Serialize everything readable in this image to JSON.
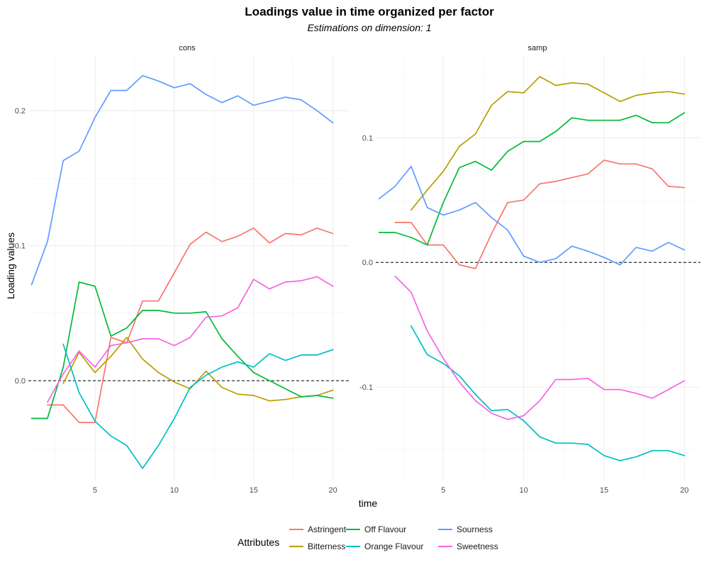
{
  "chart_data": {
    "type": "line",
    "title": "Loadings value in time organized per factor",
    "subtitle": "Estimations on dimension: 1",
    "xlabel": "time",
    "ylabel": "Loading values",
    "legend": {
      "title": "Attributes",
      "position": "bottom",
      "items": [
        {
          "name": "Astringent",
          "color": "#F8766D"
        },
        {
          "name": "Bitterness",
          "color": "#B79F00"
        },
        {
          "name": "Off Flavour",
          "color": "#00BA38"
        },
        {
          "name": "Orange Flavour",
          "color": "#00BFC4"
        },
        {
          "name": "Sourness",
          "color": "#619CFF"
        },
        {
          "name": "Sweetness",
          "color": "#F564E3"
        }
      ]
    },
    "facets": [
      {
        "name": "cons",
        "xlim": [
          0.8,
          21.0
        ],
        "ylim": [
          -0.074,
          0.24
        ],
        "xticks": [
          5,
          10,
          15,
          20
        ],
        "yticks": [
          0.0,
          0.1,
          0.2
        ],
        "ytick_labels": [
          "0.0",
          "0.1",
          "0.2"
        ],
        "series": [
          {
            "name": "Astringent",
            "x": [
              2,
              3,
              4,
              5,
              6,
              7,
              8,
              9,
              10,
              11,
              12,
              13,
              14,
              15,
              16,
              17,
              18,
              19,
              20
            ],
            "y": [
              -0.018,
              -0.018,
              -0.031,
              -0.031,
              0.032,
              0.028,
              0.059,
              0.059,
              0.08,
              0.101,
              0.11,
              0.103,
              0.107,
              0.113,
              0.102,
              0.109,
              0.108,
              0.113,
              0.109
            ]
          },
          {
            "name": "Bitterness",
            "x": [
              3,
              4,
              5,
              6,
              7,
              8,
              9,
              10,
              11,
              12,
              13,
              14,
              15,
              16,
              17,
              18,
              19,
              20
            ],
            "y": [
              -0.002,
              0.021,
              0.006,
              0.018,
              0.032,
              0.016,
              0.006,
              -0.001,
              -0.006,
              0.007,
              -0.005,
              -0.01,
              -0.011,
              -0.015,
              -0.014,
              -0.012,
              -0.011,
              -0.007
            ]
          },
          {
            "name": "Off Flavour",
            "x": [
              1,
              2,
              3,
              4,
              5,
              6,
              7,
              8,
              9,
              10,
              11,
              12,
              13,
              14,
              15,
              16,
              17,
              18,
              19,
              20
            ],
            "y": [
              -0.028,
              -0.028,
              0.01,
              0.073,
              0.07,
              0.033,
              0.039,
              0.052,
              0.052,
              0.05,
              0.05,
              0.051,
              0.031,
              0.018,
              0.006,
              0.0,
              -0.006,
              -0.012,
              -0.011,
              -0.013
            ]
          },
          {
            "name": "Orange Flavour",
            "x": [
              3,
              4,
              5,
              6,
              7,
              8,
              9,
              10,
              11,
              12,
              13,
              14,
              15,
              16,
              17,
              18,
              19,
              20
            ],
            "y": [
              0.027,
              -0.009,
              -0.03,
              -0.041,
              -0.048,
              -0.065,
              -0.048,
              -0.028,
              -0.005,
              0.004,
              0.01,
              0.014,
              0.01,
              0.02,
              0.015,
              0.019,
              0.019,
              0.023
            ]
          },
          {
            "name": "Sourness",
            "x": [
              1,
              2,
              3,
              4,
              5,
              6,
              7,
              8,
              9,
              10,
              11,
              12,
              13,
              14,
              15,
              16,
              17,
              18,
              19,
              20
            ],
            "y": [
              0.071,
              0.103,
              0.163,
              0.17,
              0.195,
              0.215,
              0.215,
              0.226,
              0.222,
              0.217,
              0.22,
              0.212,
              0.206,
              0.211,
              0.204,
              0.207,
              0.21,
              0.208,
              0.2,
              0.191
            ]
          },
          {
            "name": "Sweetness",
            "x": [
              2,
              3,
              4,
              5,
              6,
              7,
              8,
              9,
              10,
              11,
              12,
              13,
              14,
              15,
              16,
              17,
              18,
              19,
              20
            ],
            "y": [
              -0.016,
              0.005,
              0.022,
              0.01,
              0.026,
              0.028,
              0.031,
              0.031,
              0.026,
              0.032,
              0.047,
              0.048,
              0.054,
              0.075,
              0.068,
              0.073,
              0.074,
              0.077,
              0.07
            ]
          }
        ]
      },
      {
        "name": "samp",
        "xlim": [
          0.8,
          21.0
        ],
        "ylim": [
          -0.175,
          0.165
        ],
        "xticks": [
          5,
          10,
          15,
          20
        ],
        "yticks": [
          -0.1,
          0.0,
          0.1
        ],
        "ytick_labels": [
          "-0.1",
          "0.0",
          "0.1"
        ],
        "series": [
          {
            "name": "Astringent",
            "x": [
              2,
              3,
              4,
              5,
              6,
              7,
              8,
              9,
              10,
              11,
              12,
              13,
              14,
              15,
              16,
              17,
              18,
              19,
              20
            ],
            "y": [
              0.032,
              0.032,
              0.014,
              0.014,
              -0.002,
              -0.005,
              0.023,
              0.048,
              0.05,
              0.063,
              0.065,
              0.068,
              0.071,
              0.082,
              0.079,
              0.079,
              0.075,
              0.061,
              0.06
            ]
          },
          {
            "name": "Bitterness",
            "x": [
              3,
              4,
              5,
              6,
              7,
              8,
              9,
              10,
              11,
              12,
              13,
              14,
              15,
              16,
              17,
              18,
              19,
              20
            ],
            "y": [
              0.042,
              0.058,
              0.073,
              0.093,
              0.103,
              0.126,
              0.137,
              0.136,
              0.149,
              0.142,
              0.144,
              0.143,
              0.136,
              0.129,
              0.134,
              0.136,
              0.137,
              0.135
            ]
          },
          {
            "name": "Off Flavour",
            "x": [
              1,
              2,
              3,
              4,
              5,
              6,
              7,
              8,
              9,
              10,
              11,
              12,
              13,
              14,
              15,
              16,
              17,
              18,
              19,
              20
            ],
            "y": [
              0.024,
              0.024,
              0.02,
              0.014,
              0.048,
              0.076,
              0.081,
              0.074,
              0.089,
              0.097,
              0.097,
              0.105,
              0.116,
              0.114,
              0.114,
              0.114,
              0.118,
              0.112,
              0.112,
              0.12
            ]
          },
          {
            "name": "Orange Flavour",
            "x": [
              3,
              4,
              5,
              6,
              7,
              8,
              9,
              10,
              11,
              12,
              13,
              14,
              15,
              16,
              17,
              18,
              19,
              20
            ],
            "y": [
              -0.051,
              -0.074,
              -0.081,
              -0.091,
              -0.106,
              -0.119,
              -0.118,
              -0.127,
              -0.14,
              -0.145,
              -0.145,
              -0.146,
              -0.155,
              -0.159,
              -0.156,
              -0.151,
              -0.151,
              -0.155
            ]
          },
          {
            "name": "Sourness",
            "x": [
              1,
              2,
              3,
              4,
              5,
              6,
              7,
              8,
              9,
              10,
              11,
              12,
              13,
              14,
              15,
              16,
              17,
              18,
              19,
              20
            ],
            "y": [
              0.051,
              0.061,
              0.077,
              0.044,
              0.038,
              0.042,
              0.048,
              0.036,
              0.026,
              0.005,
              0.0,
              0.003,
              0.013,
              0.009,
              0.004,
              -0.002,
              0.012,
              0.009,
              0.016,
              0.01
            ]
          },
          {
            "name": "Sweetness",
            "x": [
              2,
              3,
              4,
              5,
              6,
              7,
              8,
              9,
              10,
              11,
              12,
              13,
              14,
              15,
              16,
              17,
              18,
              19,
              20
            ],
            "y": [
              -0.011,
              -0.024,
              -0.055,
              -0.077,
              -0.096,
              -0.111,
              -0.121,
              -0.126,
              -0.123,
              -0.111,
              -0.094,
              -0.094,
              -0.093,
              -0.102,
              -0.102,
              -0.105,
              -0.109,
              -0.102,
              -0.095
            ]
          }
        ]
      }
    ]
  }
}
